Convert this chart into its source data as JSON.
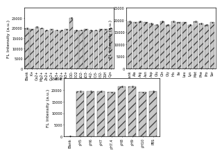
{
  "chart1": {
    "values": [
      20000,
      19500,
      20500,
      20000,
      19000,
      19500,
      19000,
      19000,
      19500,
      25000,
      19000,
      19000,
      19500,
      19000,
      19000,
      19500,
      19500,
      20000
    ],
    "errors": [
      300,
      200,
      250,
      200,
      200,
      200,
      200,
      200,
      200,
      400,
      200,
      200,
      200,
      200,
      200,
      200,
      200,
      250
    ],
    "labels": [
      "Blank",
      "K+",
      "Ca2+",
      "Mg2+",
      "Zn2+",
      "Cu2+",
      "Fe3+",
      "Fe2+",
      "Al3+",
      "ClO-",
      "H2O2",
      "NO2-",
      "NO3-",
      "SO42-",
      "HCO3-",
      "CO32-",
      "GSH",
      "Cys"
    ],
    "ylabel": "FL Intensity (a.u.)",
    "ylim": [
      0,
      30000
    ],
    "yticks": [
      0,
      5000,
      10000,
      15000,
      20000,
      25000
    ],
    "ytick_labels": [
      "0",
      "5000",
      "10000",
      "15000",
      "20000",
      "25000"
    ]
  },
  "chart2": {
    "values": [
      19500,
      19000,
      19500,
      19000,
      18500,
      18000,
      19500,
      18000,
      19500,
      19000,
      19000,
      18000,
      19500,
      18500,
      18000,
      19000
    ],
    "errors": [
      250,
      200,
      250,
      200,
      200,
      200,
      250,
      200,
      250,
      200,
      200,
      200,
      250,
      200,
      200,
      250
    ],
    "labels": [
      "Blank",
      "Ala",
      "Arg",
      "Asn",
      "Asp",
      "Glu",
      "Gln",
      "Gly",
      "His",
      "Ile",
      "Leu",
      "Lys",
      "Met",
      "Phe",
      "Pro",
      "Ser"
    ],
    "ylabel": "FL Intensity (a.u.)",
    "ylim": [
      0,
      25000
    ],
    "yticks": [
      0,
      5000,
      10000,
      15000,
      20000,
      25000
    ],
    "ytick_labels": [
      "0",
      "5000",
      "10000",
      "15000",
      "20000",
      "25000"
    ]
  },
  "chart3": {
    "values": [
      200,
      19500,
      19500,
      19500,
      19000,
      21500,
      21500,
      19000,
      19500
    ],
    "errors": [
      50,
      250,
      250,
      250,
      200,
      300,
      300,
      200,
      250
    ],
    "labels": [
      "Blank",
      "pH5",
      "pH6",
      "pH7",
      "pH7.4",
      "pH8",
      "pH9",
      "pH10",
      "PBS"
    ],
    "ylabel": "FL Intensity (a.u.)",
    "ylim": [
      0,
      25000
    ],
    "yticks": [
      0,
      5000,
      10000,
      15000,
      20000,
      25000
    ],
    "ytick_labels": [
      "0",
      "5000",
      "10000",
      "15000",
      "20000",
      "25000"
    ]
  },
  "bar_color": "#c8c8c8",
  "hatch": "///",
  "edge_color": "#444444",
  "background_color": "#ffffff",
  "tick_fontsize": 3.5,
  "label_fontsize": 4.5
}
